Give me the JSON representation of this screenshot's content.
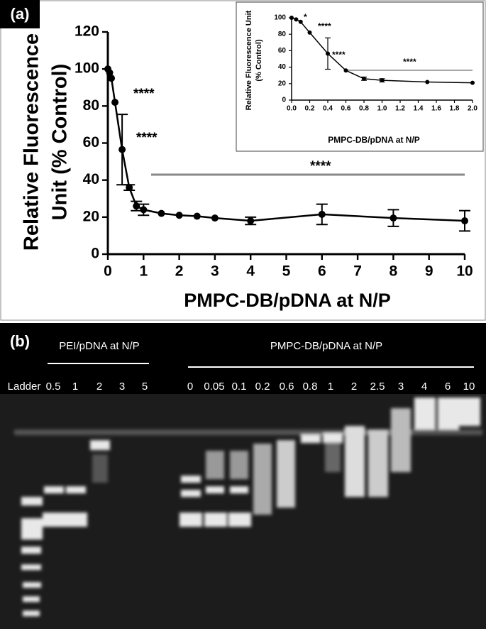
{
  "panel_labels": [
    "(a)",
    "(b)"
  ],
  "chart_data": [
    {
      "type": "line",
      "xlabel": "PMPC-DB/pDNA at N/P",
      "ylabel": [
        "Relative Fluorescence",
        "Unit (% Control)"
      ],
      "x": [
        0,
        0.05,
        0.1,
        0.2,
        0.4,
        0.6,
        0.8,
        1,
        1.5,
        2,
        2.5,
        3,
        4,
        6,
        8,
        10
      ],
      "series": [
        {
          "color": "#000000",
          "values": [
            100,
            98,
            95,
            82,
            56.5,
            36,
            26,
            24,
            22,
            21,
            20.5,
            19.5,
            18,
            21.5,
            19.5,
            18
          ],
          "errors": [
            null,
            null,
            null,
            null,
            19,
            1.5,
            2.5,
            3,
            null,
            null,
            null,
            null,
            2,
            5.5,
            4.5,
            5.5
          ]
        }
      ],
      "xlim": [
        0,
        10
      ],
      "ylim": [
        0,
        120
      ],
      "xticks": [
        0,
        1,
        2,
        3,
        4,
        5,
        6,
        7,
        8,
        9,
        10
      ],
      "yticks": [
        0,
        20,
        40,
        60,
        80,
        100,
        120
      ],
      "annotations": [
        "****",
        "****",
        "****"
      ],
      "significance_color": "#888888"
    },
    {
      "type": "line",
      "xlabel": "PMPC-DB/pDNA at N/P",
      "ylabel": [
        "Relative Fluorescence Unit",
        "(% Control)"
      ],
      "x": [
        0,
        0.05,
        0.1,
        0.2,
        0.4,
        0.6,
        0.8,
        1,
        1.5,
        2
      ],
      "series": [
        {
          "color": "#000000",
          "values": [
            100,
            98,
            95,
            82,
            56.5,
            36,
            26,
            24,
            22,
            21
          ],
          "errors": [
            null,
            null,
            null,
            null,
            19,
            null,
            2,
            2,
            null,
            null
          ]
        }
      ],
      "xlim": [
        0,
        2
      ],
      "ylim": [
        0,
        100
      ],
      "xticks": [
        {
          "value": 0,
          "label": "0.0"
        },
        {
          "value": 0.2,
          "label": "0.2"
        },
        {
          "value": 0.4,
          "label": "0.4"
        },
        {
          "value": 0.6,
          "label": "0.6"
        },
        {
          "value": 0.8,
          "label": "0.8"
        },
        {
          "value": 1,
          "label": "1.0"
        },
        {
          "value": 1.2,
          "label": "1.2"
        },
        {
          "value": 1.4,
          "label": "1.4"
        },
        {
          "value": 1.6,
          "label": "1.6"
        },
        {
          "value": 1.8,
          "label": "1.8"
        },
        {
          "value": 2,
          "label": "2.0"
        }
      ],
      "yticks": [
        0,
        20,
        40,
        60,
        80,
        100
      ],
      "annotations": [
        "*",
        "****",
        "****",
        "****"
      ],
      "significance_color": "#888888"
    }
  ],
  "gel": {
    "groups": [
      "PEI/pDNA at N/P",
      "PMPC-DB/pDNA at N/P"
    ],
    "lanes": [
      "Ladder",
      "0.5",
      "1",
      "2",
      "3",
      "5",
      "0",
      "0.05",
      "0.1",
      "0.2",
      "0.6",
      "0.8",
      "1",
      "2",
      "2.5",
      "3",
      "4",
      "6",
      "10"
    ]
  }
}
